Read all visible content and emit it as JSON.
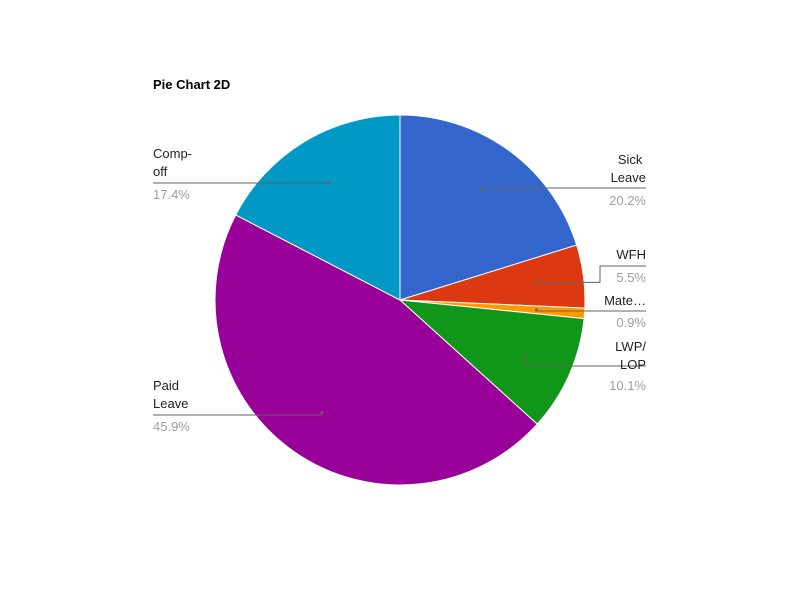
{
  "chart_data": {
    "type": "pie",
    "title": "Pie Chart 2D",
    "categories": [
      "Sick Leave",
      "WFH",
      "Mate…",
      "LWP/LOP",
      "Paid Leave",
      "Comp-off"
    ],
    "values": [
      20.2,
      5.5,
      0.9,
      10.1,
      45.9,
      17.4
    ],
    "value_labels": [
      "20.2%",
      "5.5%",
      "0.9%",
      "10.1%",
      "45.9%",
      "17.4%"
    ],
    "colors": [
      "#3366cc",
      "#dc3912",
      "#ff9900",
      "#109618",
      "#990099",
      "#0099c6"
    ]
  }
}
